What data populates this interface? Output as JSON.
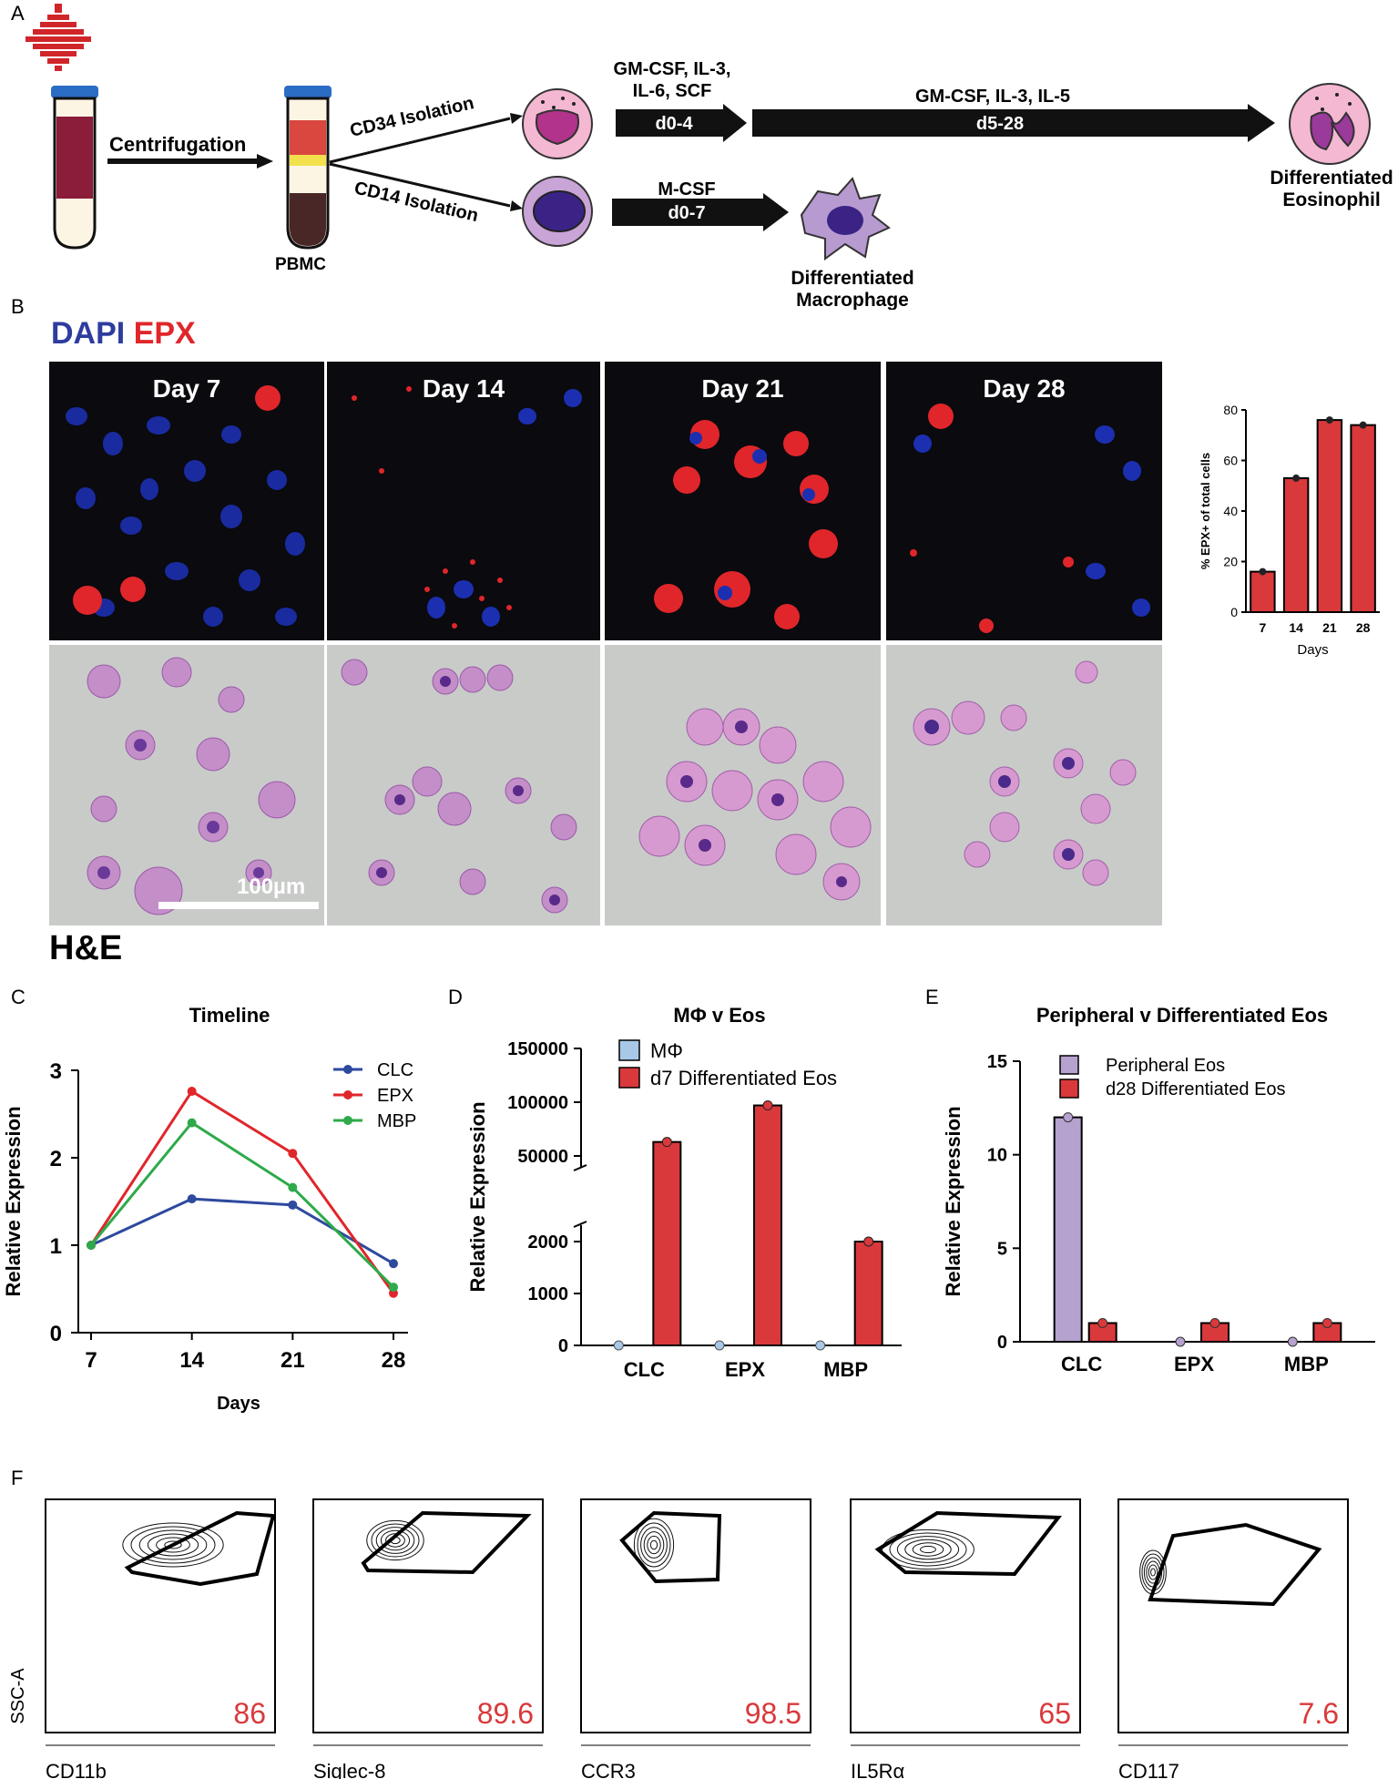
{
  "panel_labels": {
    "a": "A",
    "b": "B",
    "c": "C",
    "d": "D",
    "e": "E",
    "f": "F"
  },
  "panel_a": {
    "centrifugation": "Centrifugation",
    "pbmc": "PBMC",
    "cd34": "CD34 Isolation",
    "cd14": "CD14 Isolation",
    "eos_cytokines_1a": "GM-CSF, IL-3,",
    "eos_cytokines_1b": "IL-6, SCF",
    "eos_days_1": "d0-4",
    "eos_cytokines_2": "GM-CSF, IL-3, IL-5",
    "eos_days_2": "d5-28",
    "mac_cytokine": "M-CSF",
    "mac_days": "d0-7",
    "diff_eos_1": "Differentiated",
    "diff_eos_2": "Eosinophil",
    "diff_mac_1": "Differentiated",
    "diff_mac_2": "Macrophage"
  },
  "panel_b": {
    "dapi": "DAPI",
    "epx": "EPX",
    "days": [
      "Day 7",
      "Day 14",
      "Day 21",
      "Day 28"
    ],
    "scale_bar": "100µm",
    "he": "H&E",
    "colors": {
      "dapi": "#2e3c9e",
      "epx": "#e0262a"
    }
  },
  "chart_data": [
    {
      "type": "bar",
      "categories": [
        "7",
        "14",
        "21",
        "28"
      ],
      "values": [
        16,
        53,
        76,
        74
      ],
      "xlabel": "Days",
      "ylabel": "% EPX+ of total cells",
      "ylim": [
        0,
        80
      ],
      "yticks": [
        0,
        20,
        40,
        60,
        80
      ],
      "color": "#d9393b"
    },
    {
      "type": "line",
      "title": "Timeline",
      "x": [
        7,
        14,
        21,
        28
      ],
      "xlabel": "Days",
      "ylabel": "Relative Expression",
      "ylim": [
        0,
        3
      ],
      "yticks": [
        0,
        1,
        2,
        3
      ],
      "legend": "top-right",
      "series": [
        {
          "name": "CLC",
          "color": "#2e4a9e",
          "values": [
            1.0,
            1.53,
            1.46,
            0.79
          ]
        },
        {
          "name": "EPX",
          "color": "#e0262a",
          "values": [
            1.0,
            2.76,
            2.05,
            0.45
          ]
        },
        {
          "name": "MBP",
          "color": "#2eaa4a",
          "values": [
            1.0,
            2.4,
            1.66,
            0.52
          ]
        }
      ]
    },
    {
      "type": "bar",
      "title": "MΦ v Eos",
      "categories": [
        "CLC",
        "EPX",
        "MBP"
      ],
      "ylabel": "Relative Expression",
      "yticks": [
        "0",
        "1000",
        "2000",
        "50000",
        "100000",
        "150000"
      ],
      "axis_break": true,
      "legend": "top-right",
      "series": [
        {
          "name": "MΦ",
          "color": "#a9c8e8",
          "values": [
            0,
            0,
            0
          ]
        },
        {
          "name": "d7 Differentiated Eos",
          "color": "#d9393b",
          "values": [
            63000,
            97000,
            2000
          ]
        }
      ]
    },
    {
      "type": "bar",
      "title": "Peripheral v Differentiated Eos",
      "categories": [
        "CLC",
        "EPX",
        "MBP"
      ],
      "ylabel": "Relative Expression",
      "ylim": [
        0,
        15
      ],
      "yticks": [
        0,
        5,
        10,
        15
      ],
      "legend": "top-right",
      "series": [
        {
          "name": "Peripheral Eos",
          "color": "#b6a2cf",
          "values": [
            12,
            0,
            0
          ]
        },
        {
          "name": "d28 Differentiated Eos",
          "color": "#d9393b",
          "values": [
            1,
            1,
            1
          ]
        }
      ]
    }
  ],
  "panel_f": {
    "y_label": "SSC-A",
    "plots": [
      {
        "marker": "CD11b",
        "percent": "86"
      },
      {
        "marker": "Siglec-8",
        "percent": "89.6"
      },
      {
        "marker": "CCR3",
        "percent": "98.5"
      },
      {
        "marker": "IL5Rα",
        "percent": "65"
      },
      {
        "marker": "CD117",
        "percent": "7.6"
      }
    ],
    "percent_color": "#d9393b"
  }
}
